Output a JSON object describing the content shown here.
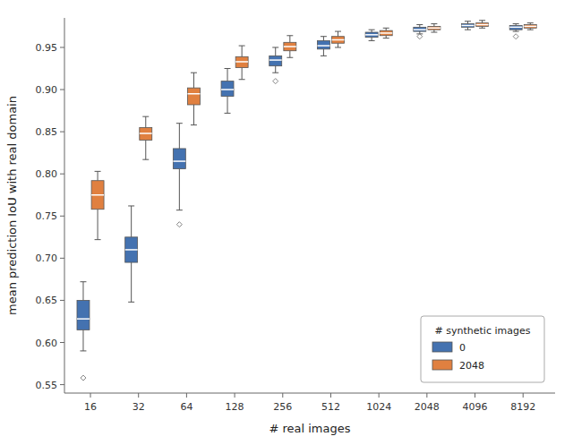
{
  "chart_data": {
    "type": "box",
    "xlabel": "# real images",
    "ylabel": "mean prediction IoU with real domain",
    "legend_title": "# synthetic images",
    "log": "x",
    "grid": false,
    "legend": "lower right",
    "x": [
      16,
      32,
      64,
      128,
      256,
      512,
      1024,
      2048,
      4096,
      8192
    ],
    "xlim": [
      11,
      13000
    ],
    "xticks": [
      16,
      32,
      64,
      128,
      256,
      512,
      1024,
      2048,
      4096,
      8192
    ],
    "ylim": [
      0.54,
      0.985
    ],
    "yticks": [
      0.55,
      {
        "value": 0.6,
        "label": "0.60"
      },
      0.65,
      {
        "value": 0.7,
        "label": "0.70"
      },
      0.75,
      {
        "value": 0.8,
        "label": "0.80"
      },
      0.85,
      {
        "value": 0.9,
        "label": "0.90"
      },
      0.95
    ],
    "series": [
      {
        "name": "0",
        "color": "#4472b0",
        "whislo": [
          0.59,
          0.648,
          0.757,
          0.872,
          0.92,
          0.94,
          0.958,
          0.966,
          0.971,
          0.969
        ],
        "q1": [
          0.615,
          0.695,
          0.806,
          0.892,
          0.928,
          0.948,
          0.962,
          0.969,
          0.974,
          0.971
        ],
        "med": [
          0.628,
          0.71,
          0.815,
          0.9,
          0.935,
          0.952,
          0.965,
          0.971,
          0.976,
          0.974
        ],
        "q3": [
          0.65,
          0.725,
          0.83,
          0.91,
          0.94,
          0.958,
          0.968,
          0.974,
          0.978,
          0.976
        ],
        "whishi": [
          0.672,
          0.762,
          0.86,
          0.925,
          0.95,
          0.963,
          0.971,
          0.977,
          0.981,
          0.978
        ],
        "fliers": [
          [
            0.558
          ],
          [],
          [
            0.74
          ],
          [],
          [
            0.91
          ],
          [],
          [],
          [
            0.963
          ],
          [],
          [
            0.963
          ]
        ]
      },
      {
        "name": "2048",
        "color": "#e08040",
        "whislo": [
          0.722,
          0.817,
          0.858,
          0.912,
          0.938,
          0.95,
          0.961,
          0.968,
          0.973,
          0.971
        ],
        "q1": [
          0.758,
          0.84,
          0.882,
          0.926,
          0.946,
          0.955,
          0.964,
          0.971,
          0.975,
          0.973
        ],
        "med": [
          0.775,
          0.848,
          0.895,
          0.933,
          0.951,
          0.959,
          0.967,
          0.973,
          0.977,
          0.975
        ],
        "q3": [
          0.792,
          0.855,
          0.902,
          0.939,
          0.956,
          0.963,
          0.97,
          0.975,
          0.979,
          0.977
        ],
        "whishi": [
          0.803,
          0.868,
          0.92,
          0.952,
          0.964,
          0.969,
          0.973,
          0.978,
          0.982,
          0.979
        ],
        "fliers": [
          [],
          [],
          [],
          [],
          [],
          [],
          [],
          [],
          [],
          []
        ]
      }
    ]
  }
}
